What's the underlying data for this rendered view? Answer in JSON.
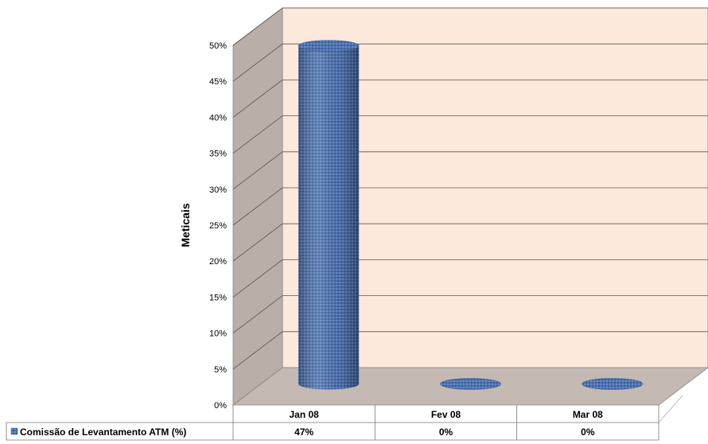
{
  "chart_data": {
    "type": "bar",
    "style": "3d-cylinder",
    "categories": [
      "Jan 08",
      "Fev 08",
      "Mar 08"
    ],
    "series": [
      {
        "name": "Comissão de Levantamento ATM (%)",
        "values": [
          47,
          0,
          0
        ],
        "value_labels": [
          "47%",
          "0%",
          "0%"
        ],
        "color": "#4a6fab"
      }
    ],
    "ylabel": "Meticais",
    "xlabel": "",
    "ylim": [
      0,
      50
    ],
    "yticks": [
      "0%",
      "5%",
      "10%",
      "15%",
      "20%",
      "25%",
      "30%",
      "35%",
      "40%",
      "45%",
      "50%"
    ],
    "grid": true,
    "legend": "data-table-below",
    "colors": {
      "back_wall": "#fde8dc",
      "side_wall": "#b9aea8",
      "floor": "#c4b9b3",
      "grid": "#555555"
    }
  }
}
